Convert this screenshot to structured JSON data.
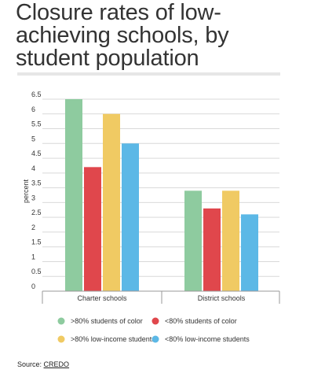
{
  "title": "Closure rates of low-achieving schools, by student population",
  "source": {
    "label": "Source:",
    "link": "CREDO"
  },
  "chart_data": {
    "type": "bar",
    "ylabel": "percent",
    "xlabel": "",
    "ylim": [
      0,
      6.5
    ],
    "yticks": [
      "0",
      "0.5",
      "1",
      "1.5",
      "2",
      "2.5",
      "3",
      "3.5",
      "4",
      "4.5",
      "5",
      "5.5",
      "6",
      "6.5"
    ],
    "categories": [
      "Charter schools",
      "District schools"
    ],
    "series": [
      {
        "name": ">80% students of color",
        "color": "#8ecb9f",
        "values": [
          6.5,
          3.4
        ]
      },
      {
        "name": "<80% students of color",
        "color": "#e0474c",
        "values": [
          4.2,
          2.8
        ]
      },
      {
        "name": ">80% low-income students",
        "color": "#f0ca63",
        "values": [
          6.0,
          3.4
        ]
      },
      {
        "name": "<80% low-income students",
        "color": "#5cb8e6",
        "values": [
          5.0,
          2.6
        ]
      }
    ],
    "grid": true,
    "legend_position": "bottom"
  }
}
